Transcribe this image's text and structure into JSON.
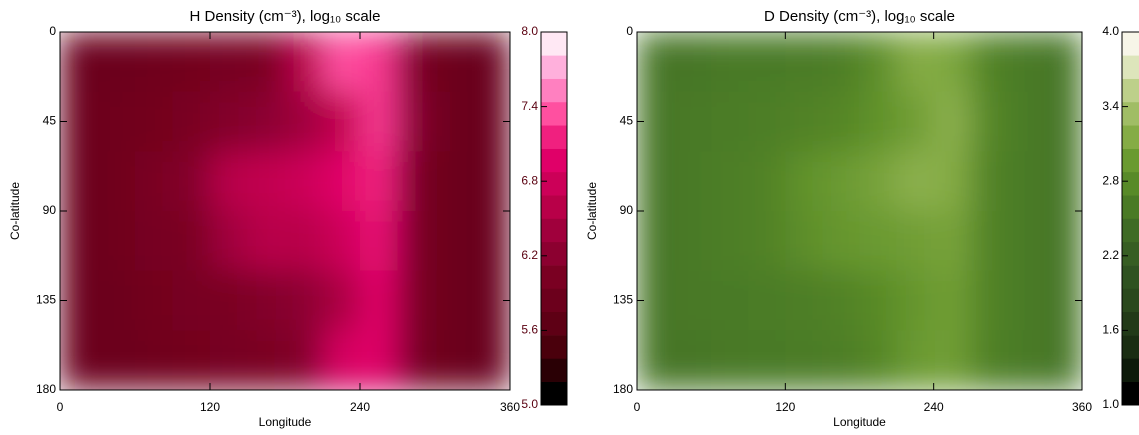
{
  "chart_data": [
    {
      "type": "heatmap",
      "title": "H Density (cm⁻³), log₁₀ scale",
      "x_label": "Longitude",
      "y_label": "Co-latitude",
      "xlim": [
        0,
        360
      ],
      "xticks": [
        0,
        120,
        240,
        360
      ],
      "ylim": [
        180,
        0
      ],
      "yticks": [
        0,
        45,
        90,
        135,
        180
      ],
      "x": [
        15,
        45,
        75,
        105,
        135,
        165,
        195,
        225,
        255,
        285,
        315,
        345
      ],
      "y": [
        15,
        45,
        75,
        105,
        135,
        165
      ],
      "z": [
        [
          5.8,
          5.8,
          5.85,
          5.9,
          5.95,
          6.0,
          6.6,
          7.4,
          7.3,
          6.0,
          5.8,
          5.75
        ],
        [
          5.8,
          5.85,
          5.9,
          6.0,
          6.1,
          6.2,
          6.4,
          6.7,
          7.3,
          6.1,
          5.8,
          5.75
        ],
        [
          5.8,
          5.85,
          6.0,
          6.1,
          6.6,
          6.7,
          6.8,
          7.0,
          7.2,
          6.0,
          5.8,
          5.75
        ],
        [
          5.8,
          5.85,
          5.95,
          6.0,
          6.4,
          6.6,
          6.6,
          6.8,
          7.1,
          6.0,
          5.8,
          5.75
        ],
        [
          5.8,
          5.8,
          5.9,
          5.95,
          6.0,
          6.1,
          6.2,
          6.5,
          7.0,
          6.0,
          5.8,
          5.75
        ],
        [
          5.8,
          5.8,
          5.85,
          5.9,
          5.95,
          6.0,
          6.1,
          6.9,
          7.0,
          5.95,
          5.8,
          5.75
        ]
      ],
      "zlim": [
        5.0,
        8.0
      ],
      "zticks": [
        {
          "value": 5.0,
          "label": "5.0"
        },
        {
          "value": 5.6,
          "label": "5.6"
        },
        {
          "value": 6.2,
          "label": "6.2"
        },
        {
          "value": 6.8,
          "label": "6.8"
        },
        {
          "value": 7.4,
          "label": "7.4"
        },
        {
          "value": 8.0,
          "label": "8.0"
        }
      ],
      "colorbar_label_color": "#5a0010",
      "colors": [
        "#000000",
        "#2a0005",
        "#4a000c",
        "#5e0015",
        "#6c001c",
        "#7a0022",
        "#8c0030",
        "#a0003c",
        "#b80048",
        "#cc0058",
        "#e00068",
        "#f0207f",
        "#ff50a0",
        "#ff80c0",
        "#ffb0dc",
        "#ffe8f4"
      ]
    },
    {
      "type": "heatmap",
      "title": "D Density (cm⁻³), log₁₀ scale",
      "x_label": "Longitude",
      "y_label": "Co-latitude",
      "xlim": [
        0,
        360
      ],
      "xticks": [
        0,
        120,
        240,
        360
      ],
      "ylim": [
        180,
        0
      ],
      "yticks": [
        0,
        45,
        90,
        135,
        180
      ],
      "x": [
        15,
        45,
        75,
        105,
        135,
        165,
        195,
        225,
        255,
        285,
        315,
        345
      ],
      "y": [
        15,
        45,
        75,
        105,
        135,
        165
      ],
      "z": [
        [
          2.55,
          2.55,
          2.6,
          2.6,
          2.62,
          2.65,
          2.85,
          3.2,
          3.15,
          2.7,
          2.6,
          2.55
        ],
        [
          2.55,
          2.6,
          2.62,
          2.65,
          2.7,
          2.75,
          2.9,
          3.05,
          3.25,
          2.75,
          2.6,
          2.55
        ],
        [
          2.55,
          2.6,
          2.65,
          2.7,
          2.9,
          3.0,
          3.1,
          3.25,
          3.2,
          2.7,
          2.6,
          2.55
        ],
        [
          2.55,
          2.6,
          2.65,
          2.7,
          2.85,
          2.95,
          3.0,
          3.05,
          3.1,
          2.7,
          2.6,
          2.55
        ],
        [
          2.55,
          2.58,
          2.6,
          2.62,
          2.65,
          2.7,
          2.8,
          2.95,
          3.05,
          2.7,
          2.6,
          2.55
        ],
        [
          2.55,
          2.55,
          2.58,
          2.6,
          2.62,
          2.65,
          2.75,
          3.0,
          3.05,
          2.68,
          2.6,
          2.55
        ]
      ],
      "zlim": [
        1.0,
        4.0
      ],
      "zticks": [
        {
          "value": 1.0,
          "label": "1.0"
        },
        {
          "value": 1.6,
          "label": "1.6"
        },
        {
          "value": 2.2,
          "label": "2.2"
        },
        {
          "value": 2.8,
          "label": "2.8"
        },
        {
          "value": 3.4,
          "label": "3.4"
        },
        {
          "value": 4.0,
          "label": "4.0"
        }
      ],
      "colorbar_label_color": "#000000",
      "colors": [
        "#000000",
        "#0d1a0a",
        "#1a2d12",
        "#223a18",
        "#2a481d",
        "#2f5221",
        "#375e23",
        "#3f6b25",
        "#4a7a25",
        "#588a28",
        "#6a9a30",
        "#85ac45",
        "#a0bd65",
        "#bdd08a",
        "#dde5bb",
        "#f7f5e8"
      ]
    }
  ]
}
